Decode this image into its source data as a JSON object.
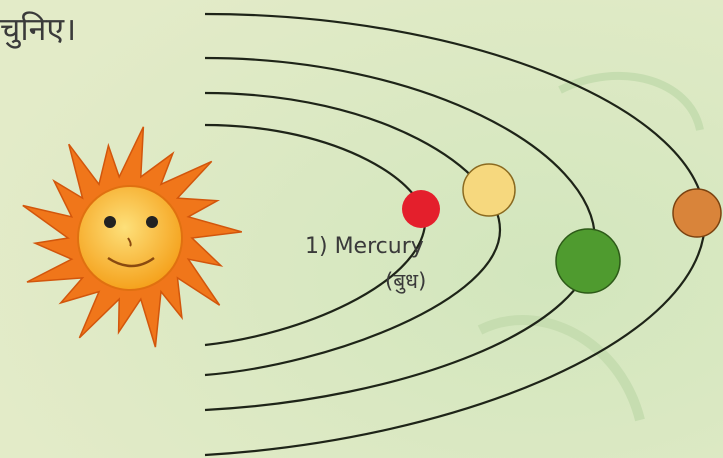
{
  "heading": "चुनिए।",
  "label": {
    "name": "1) Mercury",
    "hindi": "(बुध)"
  }
}
